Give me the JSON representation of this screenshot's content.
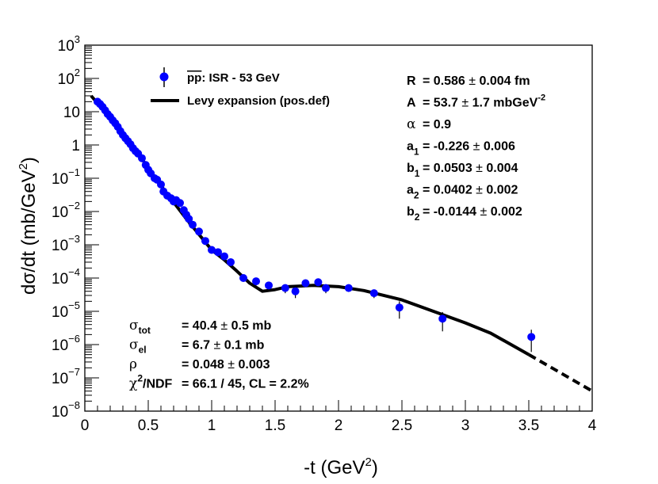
{
  "chart_data": {
    "type": "scatter",
    "title": "",
    "xlabel": "-t (GeV2)",
    "xlabel_main": "-t (GeV",
    "xlabel_sup": "2",
    "xlabel_end": ")",
    "ylabel": "dσ/dt (mb/GeV2)",
    "ylabel_main": "dσ/dt (mb/GeV",
    "ylabel_sup": "2",
    "ylabel_end": ")",
    "xlim": [
      0,
      4
    ],
    "ylim": [
      1e-08,
      1000
    ],
    "yscale": "log",
    "x_ticks": [
      {
        "value": 0,
        "label": "0"
      },
      {
        "value": 0.5,
        "label": "0.5"
      },
      {
        "value": 1,
        "label": "1"
      },
      {
        "value": 1.5,
        "label": "1.5"
      },
      {
        "value": 2,
        "label": "2"
      },
      {
        "value": 2.5,
        "label": "2.5"
      },
      {
        "value": 3,
        "label": "3"
      },
      {
        "value": 3.5,
        "label": "3.5"
      },
      {
        "value": 4,
        "label": "4"
      }
    ],
    "y_ticks": [
      {
        "exp": -8,
        "label_base": "10",
        "label_exp": "−8"
      },
      {
        "exp": -7,
        "label_base": "10",
        "label_exp": "−7"
      },
      {
        "exp": -6,
        "label_base": "10",
        "label_exp": "−6"
      },
      {
        "exp": -5,
        "label_base": "10",
        "label_exp": "−5"
      },
      {
        "exp": -4,
        "label_base": "10",
        "label_exp": "−4"
      },
      {
        "exp": -3,
        "label_base": "10",
        "label_exp": "−3"
      },
      {
        "exp": -2,
        "label_base": "10",
        "label_exp": "−2"
      },
      {
        "exp": -1,
        "label_base": "10",
        "label_exp": "−1"
      },
      {
        "exp": 0,
        "label_base": "1",
        "label_exp": ""
      },
      {
        "exp": 1,
        "label_base": "10",
        "label_exp": ""
      },
      {
        "exp": 2,
        "label_base": "10",
        "label_exp": "2"
      },
      {
        "exp": 3,
        "label_base": "10",
        "label_exp": "3"
      }
    ],
    "series": [
      {
        "name": "pp̄: ISR - 53 GeV",
        "kind": "points_with_errors",
        "color": "#0000ff",
        "points": [
          {
            "x": 0.1,
            "y": 20,
            "err": 2
          },
          {
            "x": 0.12,
            "y": 17,
            "err": 1.5
          },
          {
            "x": 0.14,
            "y": 14,
            "err": 1.2
          },
          {
            "x": 0.16,
            "y": 11,
            "err": 1
          },
          {
            "x": 0.18,
            "y": 8.5,
            "err": 0.8
          },
          {
            "x": 0.2,
            "y": 7,
            "err": 0.6
          },
          {
            "x": 0.22,
            "y": 5.5,
            "err": 0.5
          },
          {
            "x": 0.24,
            "y": 4.5,
            "err": 0.4
          },
          {
            "x": 0.26,
            "y": 3.5,
            "err": 0.3
          },
          {
            "x": 0.28,
            "y": 2.6,
            "err": 0.25
          },
          {
            "x": 0.3,
            "y": 2.0,
            "err": 0.2
          },
          {
            "x": 0.32,
            "y": 1.6,
            "err": 0.15
          },
          {
            "x": 0.34,
            "y": 1.3,
            "err": 0.12
          },
          {
            "x": 0.36,
            "y": 1.05,
            "err": 0.1
          },
          {
            "x": 0.38,
            "y": 0.8,
            "err": 0.08
          },
          {
            "x": 0.4,
            "y": 0.65,
            "err": 0.06
          },
          {
            "x": 0.42,
            "y": 0.55,
            "err": 0.05
          },
          {
            "x": 0.45,
            "y": 0.4,
            "err": 0.04
          },
          {
            "x": 0.48,
            "y": 0.25,
            "err": 0.03
          },
          {
            "x": 0.5,
            "y": 0.18,
            "err": 0.02
          },
          {
            "x": 0.52,
            "y": 0.14,
            "err": 0.015
          },
          {
            "x": 0.55,
            "y": 0.1,
            "err": 0.01
          },
          {
            "x": 0.57,
            "y": 0.09,
            "err": 0.01
          },
          {
            "x": 0.6,
            "y": 0.065,
            "err": 0.01
          },
          {
            "x": 0.62,
            "y": 0.04,
            "err": 0.006
          },
          {
            "x": 0.65,
            "y": 0.03,
            "err": 0.005
          },
          {
            "x": 0.68,
            "y": 0.025,
            "err": 0.004
          },
          {
            "x": 0.7,
            "y": 0.02,
            "err": 0.004
          },
          {
            "x": 0.72,
            "y": 0.022,
            "err": 0.004
          },
          {
            "x": 0.75,
            "y": 0.018,
            "err": 0.003
          },
          {
            "x": 0.78,
            "y": 0.011,
            "err": 0.002
          },
          {
            "x": 0.8,
            "y": 0.008,
            "err": 0.002
          },
          {
            "x": 0.82,
            "y": 0.006,
            "err": 0.002
          },
          {
            "x": 0.85,
            "y": 0.004,
            "err": 0.0008
          },
          {
            "x": 0.9,
            "y": 0.0025,
            "err": 0.0005
          },
          {
            "x": 0.95,
            "y": 0.0013,
            "err": 0.0003
          },
          {
            "x": 1.0,
            "y": 0.0007,
            "err": 0.00015
          },
          {
            "x": 1.05,
            "y": 0.0006,
            "err": 0.00012
          },
          {
            "x": 1.1,
            "y": 0.00045,
            "err": 0.0001
          },
          {
            "x": 1.15,
            "y": 0.0003,
            "err": 7e-05
          },
          {
            "x": 1.25,
            "y": 0.0001,
            "err": 2e-05
          },
          {
            "x": 1.35,
            "y": 8e-05,
            "err": 2e-05
          },
          {
            "x": 1.45,
            "y": 6e-05,
            "err": 1.5e-05
          },
          {
            "x": 1.58,
            "y": 5e-05,
            "err": 1.5e-05
          },
          {
            "x": 1.66,
            "y": 4e-05,
            "err": 1.5e-05
          },
          {
            "x": 1.74,
            "y": 7e-05,
            "err": 1.5e-05
          },
          {
            "x": 1.84,
            "y": 7.5e-05,
            "err": 1.5e-05
          },
          {
            "x": 1.9,
            "y": 5e-05,
            "err": 1.5e-05
          },
          {
            "x": 2.08,
            "y": 5e-05,
            "err": 1e-05
          },
          {
            "x": 2.28,
            "y": 3.5e-05,
            "err": 1e-05
          },
          {
            "x": 2.48,
            "y": 1.3e-05,
            "err": 7e-06
          },
          {
            "x": 2.82,
            "y": 6e-06,
            "err": 3.5e-06
          },
          {
            "x": 3.52,
            "y": 1.7e-06,
            "err": 1.1e-06
          }
        ]
      },
      {
        "name": "Levy expansion (pos.def)",
        "kind": "line",
        "color": "#000000",
        "points": [
          {
            "x": 0.05,
            "y": 30
          },
          {
            "x": 0.2,
            "y": 6.5
          },
          {
            "x": 0.4,
            "y": 0.7
          },
          {
            "x": 0.6,
            "y": 0.06
          },
          {
            "x": 0.8,
            "y": 0.006
          },
          {
            "x": 1.0,
            "y": 0.0007
          },
          {
            "x": 1.1,
            "y": 0.00035
          },
          {
            "x": 1.2,
            "y": 0.00016
          },
          {
            "x": 1.3,
            "y": 7e-05
          },
          {
            "x": 1.4,
            "y": 4e-05
          },
          {
            "x": 1.5,
            "y": 4.5e-05
          },
          {
            "x": 1.6,
            "y": 5.5e-05
          },
          {
            "x": 1.8,
            "y": 6e-05
          },
          {
            "x": 2.0,
            "y": 5.5e-05
          },
          {
            "x": 2.2,
            "y": 4.2e-05
          },
          {
            "x": 2.5,
            "y": 2.2e-05
          },
          {
            "x": 2.8,
            "y": 8.5e-06
          },
          {
            "x": 3.0,
            "y": 4.5e-06
          },
          {
            "x": 3.2,
            "y": 2.2e-06
          },
          {
            "x": 3.5,
            "y": 5e-07
          }
        ],
        "extrapolation": [
          {
            "x": 3.5,
            "y": 5e-07
          },
          {
            "x": 4.0,
            "y": 4e-08
          }
        ]
      }
    ],
    "legend": {
      "placement": "top-left",
      "data_label_main": "pp",
      "data_label_rest": ": ISR - 53 GeV",
      "line_label": "Levy expansion (pos.def)"
    },
    "fit_parameters": [
      {
        "name": "R",
        "sub": "",
        "sup": "",
        "value": "= 0.586",
        "pm": "±",
        "error": "0.004 fm",
        "unit_sup": ""
      },
      {
        "name": "A",
        "sub": "",
        "sup": "",
        "value": "= 53.7",
        "pm": "±",
        "error": "1.7 mbGeV",
        "unit_sup": "-2"
      },
      {
        "name": "α",
        "sub": "",
        "sup": "",
        "value": "= 0.9",
        "pm": "",
        "error": "",
        "unit_sup": ""
      },
      {
        "name": "a",
        "sub": "1",
        "sup": "",
        "value": "= -0.226",
        "pm": "±",
        "error": "0.006",
        "unit_sup": ""
      },
      {
        "name": "b",
        "sub": "1",
        "sup": "",
        "value": "= 0.0503",
        "pm": "±",
        "error": "0.004",
        "unit_sup": ""
      },
      {
        "name": "a",
        "sub": "2",
        "sup": "",
        "value": "= 0.0402",
        "pm": "±",
        "error": "0.002",
        "unit_sup": ""
      },
      {
        "name": "b",
        "sub": "2",
        "sup": "",
        "value": "= -0.0144",
        "pm": "±",
        "error": "0.002",
        "unit_sup": ""
      }
    ],
    "fit_stats": [
      {
        "sym": "σ",
        "sub": "tot",
        "sup": "",
        "tail": "",
        "value": "= 40.4",
        "pm": "±",
        "error": "0.5 mb"
      },
      {
        "sym": "σ",
        "sub": "el",
        "sup": "",
        "tail": "",
        "value": "= 6.7",
        "pm": "±",
        "error": "0.1 mb"
      },
      {
        "sym": "ρ",
        "sub": "",
        "sup": "",
        "tail": "",
        "value": "= 0.048",
        "pm": "±",
        "error": "0.003"
      },
      {
        "sym": "χ",
        "sub": "",
        "sup": "2",
        "tail": "/NDF",
        "value": "= 66.1 / 45,  CL = 2.2%",
        "pm": "",
        "error": ""
      }
    ]
  }
}
